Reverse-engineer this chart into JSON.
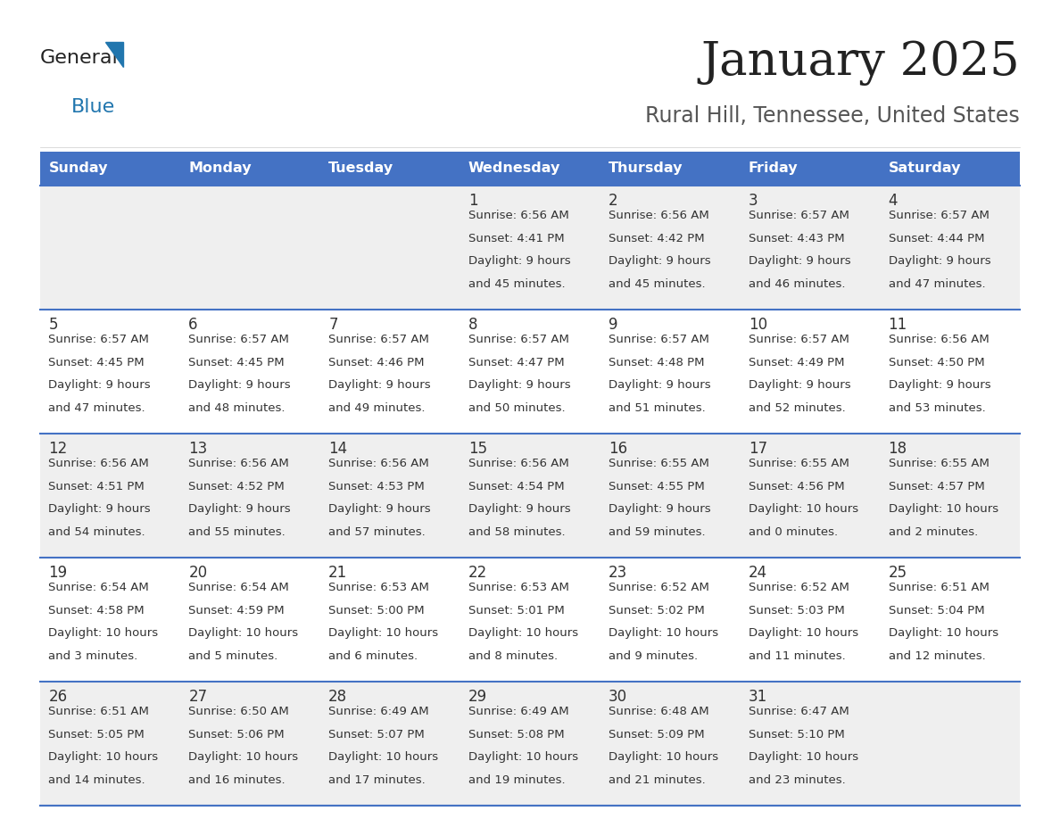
{
  "title": "January 2025",
  "subtitle": "Rural Hill, Tennessee, United States",
  "header_color": "#4472C4",
  "header_text_color": "#FFFFFF",
  "days_of_week": [
    "Sunday",
    "Monday",
    "Tuesday",
    "Wednesday",
    "Thursday",
    "Friday",
    "Saturday"
  ],
  "background_color": "#FFFFFF",
  "cell_bg_odd": "#EFEFEF",
  "cell_bg_even": "#FFFFFF",
  "row_line_color": "#4472C4",
  "text_color": "#333333",
  "calendar_data": [
    [
      {
        "day": "",
        "sunrise": "",
        "sunset": "",
        "daylight": ""
      },
      {
        "day": "",
        "sunrise": "",
        "sunset": "",
        "daylight": ""
      },
      {
        "day": "",
        "sunrise": "",
        "sunset": "",
        "daylight": ""
      },
      {
        "day": "1",
        "sunrise": "6:56 AM",
        "sunset": "4:41 PM",
        "daylight": "9 hours",
        "daylight2": "and 45 minutes."
      },
      {
        "day": "2",
        "sunrise": "6:56 AM",
        "sunset": "4:42 PM",
        "daylight": "9 hours",
        "daylight2": "and 45 minutes."
      },
      {
        "day": "3",
        "sunrise": "6:57 AM",
        "sunset": "4:43 PM",
        "daylight": "9 hours",
        "daylight2": "and 46 minutes."
      },
      {
        "day": "4",
        "sunrise": "6:57 AM",
        "sunset": "4:44 PM",
        "daylight": "9 hours",
        "daylight2": "and 47 minutes."
      }
    ],
    [
      {
        "day": "5",
        "sunrise": "6:57 AM",
        "sunset": "4:45 PM",
        "daylight": "9 hours",
        "daylight2": "and 47 minutes."
      },
      {
        "day": "6",
        "sunrise": "6:57 AM",
        "sunset": "4:45 PM",
        "daylight": "9 hours",
        "daylight2": "and 48 minutes."
      },
      {
        "day": "7",
        "sunrise": "6:57 AM",
        "sunset": "4:46 PM",
        "daylight": "9 hours",
        "daylight2": "and 49 minutes."
      },
      {
        "day": "8",
        "sunrise": "6:57 AM",
        "sunset": "4:47 PM",
        "daylight": "9 hours",
        "daylight2": "and 50 minutes."
      },
      {
        "day": "9",
        "sunrise": "6:57 AM",
        "sunset": "4:48 PM",
        "daylight": "9 hours",
        "daylight2": "and 51 minutes."
      },
      {
        "day": "10",
        "sunrise": "6:57 AM",
        "sunset": "4:49 PM",
        "daylight": "9 hours",
        "daylight2": "and 52 minutes."
      },
      {
        "day": "11",
        "sunrise": "6:56 AM",
        "sunset": "4:50 PM",
        "daylight": "9 hours",
        "daylight2": "and 53 minutes."
      }
    ],
    [
      {
        "day": "12",
        "sunrise": "6:56 AM",
        "sunset": "4:51 PM",
        "daylight": "9 hours",
        "daylight2": "and 54 minutes."
      },
      {
        "day": "13",
        "sunrise": "6:56 AM",
        "sunset": "4:52 PM",
        "daylight": "9 hours",
        "daylight2": "and 55 minutes."
      },
      {
        "day": "14",
        "sunrise": "6:56 AM",
        "sunset": "4:53 PM",
        "daylight": "9 hours",
        "daylight2": "and 57 minutes."
      },
      {
        "day": "15",
        "sunrise": "6:56 AM",
        "sunset": "4:54 PM",
        "daylight": "9 hours",
        "daylight2": "and 58 minutes."
      },
      {
        "day": "16",
        "sunrise": "6:55 AM",
        "sunset": "4:55 PM",
        "daylight": "9 hours",
        "daylight2": "and 59 minutes."
      },
      {
        "day": "17",
        "sunrise": "6:55 AM",
        "sunset": "4:56 PM",
        "daylight": "10 hours",
        "daylight2": "and 0 minutes."
      },
      {
        "day": "18",
        "sunrise": "6:55 AM",
        "sunset": "4:57 PM",
        "daylight": "10 hours",
        "daylight2": "and 2 minutes."
      }
    ],
    [
      {
        "day": "19",
        "sunrise": "6:54 AM",
        "sunset": "4:58 PM",
        "daylight": "10 hours",
        "daylight2": "and 3 minutes."
      },
      {
        "day": "20",
        "sunrise": "6:54 AM",
        "sunset": "4:59 PM",
        "daylight": "10 hours",
        "daylight2": "and 5 minutes."
      },
      {
        "day": "21",
        "sunrise": "6:53 AM",
        "sunset": "5:00 PM",
        "daylight": "10 hours",
        "daylight2": "and 6 minutes."
      },
      {
        "day": "22",
        "sunrise": "6:53 AM",
        "sunset": "5:01 PM",
        "daylight": "10 hours",
        "daylight2": "and 8 minutes."
      },
      {
        "day": "23",
        "sunrise": "6:52 AM",
        "sunset": "5:02 PM",
        "daylight": "10 hours",
        "daylight2": "and 9 minutes."
      },
      {
        "day": "24",
        "sunrise": "6:52 AM",
        "sunset": "5:03 PM",
        "daylight": "10 hours",
        "daylight2": "and 11 minutes."
      },
      {
        "day": "25",
        "sunrise": "6:51 AM",
        "sunset": "5:04 PM",
        "daylight": "10 hours",
        "daylight2": "and 12 minutes."
      }
    ],
    [
      {
        "day": "26",
        "sunrise": "6:51 AM",
        "sunset": "5:05 PM",
        "daylight": "10 hours",
        "daylight2": "and 14 minutes."
      },
      {
        "day": "27",
        "sunrise": "6:50 AM",
        "sunset": "5:06 PM",
        "daylight": "10 hours",
        "daylight2": "and 16 minutes."
      },
      {
        "day": "28",
        "sunrise": "6:49 AM",
        "sunset": "5:07 PM",
        "daylight": "10 hours",
        "daylight2": "and 17 minutes."
      },
      {
        "day": "29",
        "sunrise": "6:49 AM",
        "sunset": "5:08 PM",
        "daylight": "10 hours",
        "daylight2": "and 19 minutes."
      },
      {
        "day": "30",
        "sunrise": "6:48 AM",
        "sunset": "5:09 PM",
        "daylight": "10 hours",
        "daylight2": "and 21 minutes."
      },
      {
        "day": "31",
        "sunrise": "6:47 AM",
        "sunset": "5:10 PM",
        "daylight": "10 hours",
        "daylight2": "and 23 minutes."
      },
      {
        "day": "",
        "sunrise": "",
        "sunset": "",
        "daylight": "",
        "daylight2": ""
      }
    ]
  ],
  "logo_general_color": "#222222",
  "logo_blue_color": "#2176AE",
  "logo_triangle_color": "#2176AE",
  "title_fontsize": 38,
  "subtitle_fontsize": 17,
  "header_fontsize": 11.5,
  "day_num_fontsize": 12,
  "cell_text_fontsize": 9.5
}
